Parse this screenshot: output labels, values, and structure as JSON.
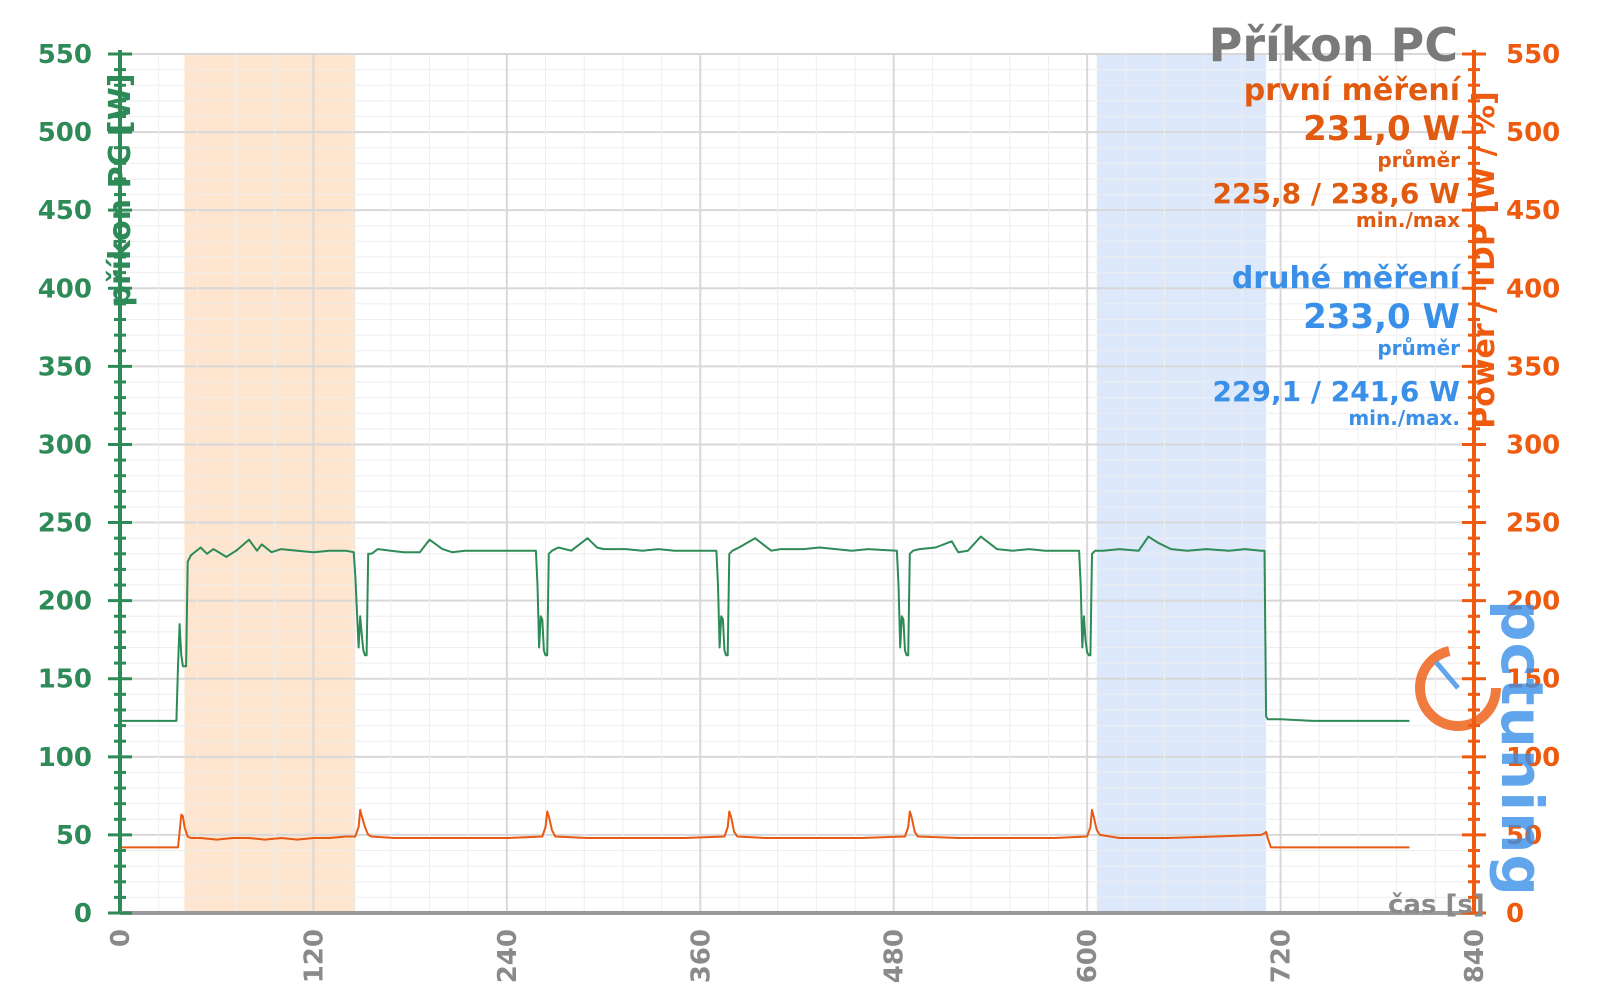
{
  "chart_data": {
    "type": "line",
    "title": "Příkon PC",
    "xlabel": "čas [s]",
    "ylabel_left": "příkon PC [W]",
    "ylabel_right": "Power / TDP [W / %]",
    "xlim": [
      0,
      840
    ],
    "ylim_left": [
      0,
      550
    ],
    "ylim_right": [
      0,
      550
    ],
    "x_ticks": [
      "0",
      "120",
      "240",
      "360",
      "480",
      "600",
      "720",
      "840"
    ],
    "y_ticks": [
      "0",
      "50",
      "100",
      "150",
      "200",
      "250",
      "300",
      "350",
      "400",
      "450",
      "500",
      "550"
    ],
    "grid": true,
    "shaded_regions": [
      {
        "from": 40,
        "to": 146,
        "color": "#fde5cf"
      },
      {
        "from": 606,
        "to": 711,
        "color": "#dde9fb"
      }
    ],
    "series": [
      {
        "name": "příkon PC [W]",
        "axis": "left",
        "color": "#2e8b57",
        "x": [
          0,
          34,
          35,
          36,
          37,
          38,
          39,
          40,
          41,
          42,
          43,
          44,
          50,
          54,
          58,
          66,
          72,
          80,
          85,
          88,
          94,
          100,
          110,
          120,
          130,
          140,
          145,
          146,
          148,
          149,
          150,
          151,
          152,
          153,
          154,
          156,
          160,
          168,
          176,
          186,
          192,
          200,
          206,
          214,
          226,
          230,
          240,
          258,
          259,
          260,
          261,
          262,
          263,
          264,
          265,
          266,
          268,
          272,
          280,
          290,
          296,
          300,
          306,
          314,
          324,
          334,
          344,
          350,
          370,
          371,
          372,
          373,
          374,
          375,
          376,
          377,
          378,
          380,
          384,
          394,
          404,
          410,
          416,
          424,
          434,
          444,
          454,
          464,
          482,
          483,
          484,
          485,
          486,
          487,
          488,
          489,
          490,
          492,
          496,
          506,
          516,
          520,
          526,
          534,
          544,
          554,
          564,
          574,
          595,
          596,
          597,
          598,
          599,
          600,
          601,
          602,
          603,
          605,
          610,
          620,
          632,
          638,
          644,
          652,
          662,
          674,
          688,
          698,
          708,
          710,
          711,
          712,
          720,
          740,
          760,
          780,
          800
        ],
        "values": [
          123,
          123,
          123,
          158,
          185,
          165,
          158,
          158,
          158,
          225,
          227,
          229,
          234,
          230,
          233,
          228,
          232,
          239,
          232,
          236,
          231,
          233,
          232,
          231,
          232,
          232,
          231,
          216,
          170,
          190,
          178,
          168,
          165,
          165,
          230,
          230,
          233,
          232,
          231,
          231,
          239,
          233,
          231,
          232,
          232,
          232,
          232,
          232,
          210,
          170,
          190,
          188,
          168,
          165,
          165,
          230,
          232,
          234,
          232,
          240,
          234,
          233,
          233,
          233,
          232,
          233,
          232,
          232,
          232,
          210,
          170,
          190,
          188,
          168,
          165,
          165,
          230,
          232,
          234,
          240,
          232,
          233,
          233,
          233,
          234,
          233,
          232,
          233,
          232,
          210,
          170,
          190,
          188,
          168,
          165,
          165,
          230,
          232,
          233,
          234,
          238,
          231,
          232,
          241,
          233,
          232,
          233,
          232,
          232,
          210,
          170,
          190,
          175,
          167,
          165,
          165,
          230,
          232,
          232,
          233,
          232,
          241,
          237,
          233,
          232,
          233,
          232,
          233,
          232,
          232,
          126,
          124,
          124,
          123,
          123,
          123,
          123
        ]
      },
      {
        "name": "Power / TDP [W / %]",
        "axis": "right",
        "color": "#e85a14",
        "x": [
          0,
          34,
          36,
          37,
          38,
          39,
          40,
          42,
          44,
          50,
          60,
          70,
          80,
          90,
          100,
          110,
          120,
          130,
          140,
          146,
          148,
          149,
          150,
          152,
          154,
          156,
          170,
          200,
          230,
          240,
          262,
          264,
          265,
          266,
          268,
          270,
          290,
          320,
          350,
          375,
          377,
          378,
          379,
          381,
          383,
          400,
          430,
          460,
          487,
          489,
          490,
          491,
          493,
          495,
          520,
          550,
          580,
          600,
          602,
          603,
          604,
          606,
          608,
          620,
          650,
          680,
          708,
          710,
          711,
          712,
          714,
          720,
          760,
          800
        ],
        "values": [
          42,
          42,
          42,
          52,
          63,
          62,
          55,
          49,
          48,
          48,
          47,
          48,
          48,
          47,
          48,
          47,
          48,
          48,
          49,
          49,
          55,
          66,
          62,
          55,
          50,
          49,
          48,
          48,
          48,
          48,
          49,
          55,
          65,
          62,
          53,
          49,
          48,
          48,
          48,
          49,
          55,
          65,
          62,
          52,
          49,
          48,
          48,
          48,
          49,
          55,
          65,
          62,
          52,
          49,
          48,
          48,
          48,
          49,
          55,
          66,
          62,
          53,
          50,
          48,
          48,
          49,
          50,
          51,
          52,
          48,
          42,
          42,
          42,
          42
        ]
      }
    ]
  },
  "title": "Příkon PC",
  "xlabel": "čas [s]",
  "ylabel_left": "příkon PC [W]",
  "ylabel_right": "Power / TDP [W / %]",
  "legend": {
    "first": {
      "label": "první měření",
      "avg": "231,0 W",
      "avg_label": "průměr",
      "minmax": "225,8 / 238,6 W",
      "minmax_label": "min./max",
      "color": "#e05a10"
    },
    "second": {
      "label": "druhé měření",
      "avg": "233,0 W",
      "avg_label": "průměr",
      "minmax": "229,1 / 241,6 W",
      "minmax_label": "min./max.",
      "color": "#3a8fe8"
    }
  },
  "colors": {
    "left_axis": "#2e8b57",
    "right_axis": "#ee5a0e",
    "title": "#7a7a7a",
    "grid_major": "#d8d8d8",
    "grid_minor": "#eeeeee"
  },
  "watermark": {
    "text": "pctuning",
    "color": "#3a8fe8"
  }
}
